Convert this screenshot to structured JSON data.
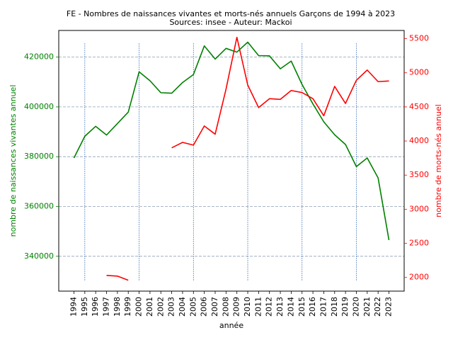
{
  "chart_data": {
    "type": "line",
    "title": "FE - Nombres de naissances vivantes et morts-nés annuels Garçons de 1994 à 2023",
    "subtitle": "Sources: insee - Auteur: Mackoi",
    "xlabel": "année",
    "ylabel_left": "nombre de naissances vivantes annuel",
    "ylabel_right": "nombre de morts-nés annuel",
    "x": [
      1994,
      1995,
      1996,
      1997,
      1998,
      1999,
      2000,
      2001,
      2002,
      2003,
      2004,
      2005,
      2006,
      2007,
      2008,
      2009,
      2010,
      2011,
      2012,
      2013,
      2014,
      2015,
      2016,
      2017,
      2018,
      2019,
      2020,
      2021,
      2022,
      2023
    ],
    "xlim": [
      1992.6,
      2024.4
    ],
    "ylim_left": [
      326000,
      430700
    ],
    "ylim_right": [
      1800,
      5620
    ],
    "yticks_left": [
      340000,
      360000,
      380000,
      400000,
      420000
    ],
    "yticks_right": [
      2000,
      2500,
      3000,
      3500,
      4000,
      4500,
      5000,
      5500
    ],
    "vlines_x": [
      1995,
      2000,
      2005,
      2010,
      2015,
      2020
    ],
    "grid": true,
    "colors": {
      "left": "#008000",
      "right": "#ff0000"
    },
    "series": [
      {
        "axis": "left",
        "values": [
          379500,
          388200,
          392200,
          388700,
          393300,
          397900,
          414100,
          410500,
          405700,
          405500,
          409800,
          413000,
          424500,
          419200,
          423500,
          422000,
          426000,
          420600,
          420500,
          415300,
          418400,
          409000,
          401200,
          394000,
          388800,
          384900,
          376000,
          379500,
          371500,
          346500
        ]
      },
      {
        "axis": "right",
        "values": [
          null,
          null,
          null,
          2030,
          2020,
          1960,
          null,
          null,
          null,
          3900,
          3980,
          3940,
          4220,
          4100,
          4760,
          5520,
          4820,
          4490,
          4620,
          4610,
          4740,
          4710,
          4620,
          4370,
          4800,
          4550,
          4890,
          5040,
          4870,
          4880
        ]
      }
    ]
  }
}
